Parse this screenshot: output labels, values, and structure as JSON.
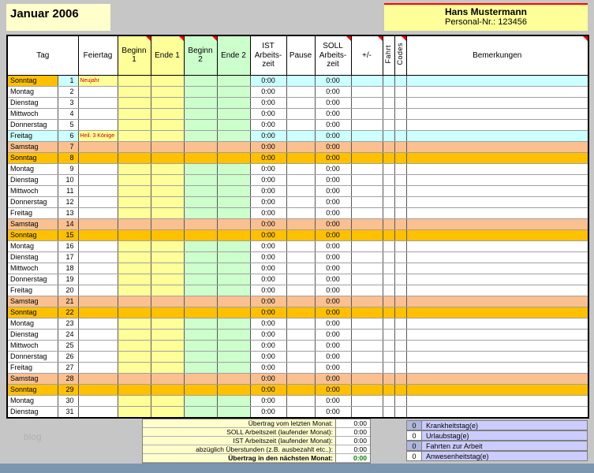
{
  "colors": {
    "sunday_row": "#ffc000",
    "saturday_row": "#fac090",
    "holiday_row": "#ccffff",
    "band_begin1": "#ffff99",
    "band_begin2": "#ccffcc",
    "counter_label_bg": "#ccccff",
    "summary_label_bg": "#ffffcc",
    "final_value_color": "#008000",
    "accent_red": "#ff0000"
  },
  "sheet_header": {
    "month_title": "Januar 2006",
    "employee_name": "Hans Mustermann",
    "personnel_no": "Personal-Nr.: 123456"
  },
  "table": {
    "columns": {
      "tag": "Tag",
      "feiertag": "Feiertag",
      "beginn1": "Beginn\n1",
      "ende1": "Ende 1",
      "beginn2": "Beginn\n2",
      "ende2": "Ende 2",
      "ist": "IST\nArbeits-\nzeit",
      "pause": "Pause",
      "soll": "SOLL\nArbeits-\nzeit",
      "plusminus": "+/-",
      "fahrt": "Fahrt",
      "codes": "Codes",
      "bemerkungen": "Bemerkungen"
    },
    "rows": [
      {
        "day": "Sonntag",
        "num": 1,
        "type": "sunday_holiday",
        "holiday": "Neujahr",
        "ist": "0:00",
        "soll": "0:00"
      },
      {
        "day": "Montag",
        "num": 2,
        "type": "weekday",
        "holiday": "",
        "ist": "0:00",
        "soll": "0:00"
      },
      {
        "day": "Dienstag",
        "num": 3,
        "type": "weekday",
        "holiday": "",
        "ist": "0:00",
        "soll": "0:00"
      },
      {
        "day": "Mittwoch",
        "num": 4,
        "type": "weekday",
        "holiday": "",
        "ist": "0:00",
        "soll": "0:00"
      },
      {
        "day": "Donnerstag",
        "num": 5,
        "type": "weekday",
        "holiday": "",
        "ist": "0:00",
        "soll": "0:00"
      },
      {
        "day": "Freitag",
        "num": 6,
        "type": "holiday",
        "holiday": "Heil. 3 Könige",
        "ist": "0:00",
        "soll": "0:00"
      },
      {
        "day": "Samstag",
        "num": 7,
        "type": "saturday",
        "holiday": "",
        "ist": "0:00",
        "soll": "0:00"
      },
      {
        "day": "Sonntag",
        "num": 8,
        "type": "sunday",
        "holiday": "",
        "ist": "0:00",
        "soll": "0:00"
      },
      {
        "day": "Montag",
        "num": 9,
        "type": "weekday",
        "holiday": "",
        "ist": "0:00",
        "soll": "0:00"
      },
      {
        "day": "Dienstag",
        "num": 10,
        "type": "weekday",
        "holiday": "",
        "ist": "0:00",
        "soll": "0:00"
      },
      {
        "day": "Mittwoch",
        "num": 11,
        "type": "weekday",
        "holiday": "",
        "ist": "0:00",
        "soll": "0:00"
      },
      {
        "day": "Donnerstag",
        "num": 12,
        "type": "weekday",
        "holiday": "",
        "ist": "0:00",
        "soll": "0:00"
      },
      {
        "day": "Freitag",
        "num": 13,
        "type": "weekday",
        "holiday": "",
        "ist": "0:00",
        "soll": "0:00"
      },
      {
        "day": "Samstag",
        "num": 14,
        "type": "saturday",
        "holiday": "",
        "ist": "0:00",
        "soll": "0:00"
      },
      {
        "day": "Sonntag",
        "num": 15,
        "type": "sunday",
        "holiday": "",
        "ist": "0:00",
        "soll": "0:00"
      },
      {
        "day": "Montag",
        "num": 16,
        "type": "weekday",
        "holiday": "",
        "ist": "0:00",
        "soll": "0:00"
      },
      {
        "day": "Dienstag",
        "num": 17,
        "type": "weekday",
        "holiday": "",
        "ist": "0:00",
        "soll": "0:00"
      },
      {
        "day": "Mittwoch",
        "num": 18,
        "type": "weekday",
        "holiday": "",
        "ist": "0:00",
        "soll": "0:00"
      },
      {
        "day": "Donnerstag",
        "num": 19,
        "type": "weekday",
        "holiday": "",
        "ist": "0:00",
        "soll": "0:00"
      },
      {
        "day": "Freitag",
        "num": 20,
        "type": "weekday",
        "holiday": "",
        "ist": "0:00",
        "soll": "0:00"
      },
      {
        "day": "Samstag",
        "num": 21,
        "type": "saturday",
        "holiday": "",
        "ist": "0:00",
        "soll": "0:00"
      },
      {
        "day": "Sonntag",
        "num": 22,
        "type": "sunday",
        "holiday": "",
        "ist": "0:00",
        "soll": "0:00"
      },
      {
        "day": "Montag",
        "num": 23,
        "type": "weekday",
        "holiday": "",
        "ist": "0:00",
        "soll": "0:00"
      },
      {
        "day": "Dienstag",
        "num": 24,
        "type": "weekday",
        "holiday": "",
        "ist": "0:00",
        "soll": "0:00"
      },
      {
        "day": "Mittwoch",
        "num": 25,
        "type": "weekday",
        "holiday": "",
        "ist": "0:00",
        "soll": "0:00"
      },
      {
        "day": "Donnerstag",
        "num": 26,
        "type": "weekday",
        "holiday": "",
        "ist": "0:00",
        "soll": "0:00"
      },
      {
        "day": "Freitag",
        "num": 27,
        "type": "weekday",
        "holiday": "",
        "ist": "0:00",
        "soll": "0:00"
      },
      {
        "day": "Samstag",
        "num": 28,
        "type": "saturday",
        "holiday": "",
        "ist": "0:00",
        "soll": "0:00"
      },
      {
        "day": "Sonntag",
        "num": 29,
        "type": "sunday",
        "holiday": "",
        "ist": "0:00",
        "soll": "0:00"
      },
      {
        "day": "Montag",
        "num": 30,
        "type": "weekday",
        "holiday": "",
        "ist": "0:00",
        "soll": "0:00"
      },
      {
        "day": "Dienstag",
        "num": 31,
        "type": "weekday",
        "holiday": "",
        "ist": "0:00",
        "soll": "0:00"
      }
    ]
  },
  "summary": {
    "rows": [
      {
        "label": "Übertrag vom letzten Monat:",
        "value": "0:00"
      },
      {
        "label": "SOLL Arbeitszeit (laufender Monat):",
        "value": "0:00"
      },
      {
        "label": "IST Arbeitszeit (laufender Monat):",
        "value": "0:00"
      },
      {
        "label": "abzüglich Überstunden (z.B. ausbezahlt etc..):",
        "value": "0:00"
      },
      {
        "label": "Übertrag in den nächsten Monat:",
        "value": "0:00",
        "final": true
      }
    ]
  },
  "counters": [
    {
      "value": "0",
      "label": "Krankheitstag(e)",
      "num_bg": "#aeb8dc"
    },
    {
      "value": "0",
      "label": "Urlaubstag(e)",
      "num_bg": "#ffffff"
    },
    {
      "value": "0",
      "label": "Fahrten zur Arbeit",
      "num_bg": "#aeb8dc"
    },
    {
      "value": "0",
      "label": "Anwesenheitstag(e)",
      "num_bg": "#ffffff"
    }
  ],
  "watermark": "blog"
}
